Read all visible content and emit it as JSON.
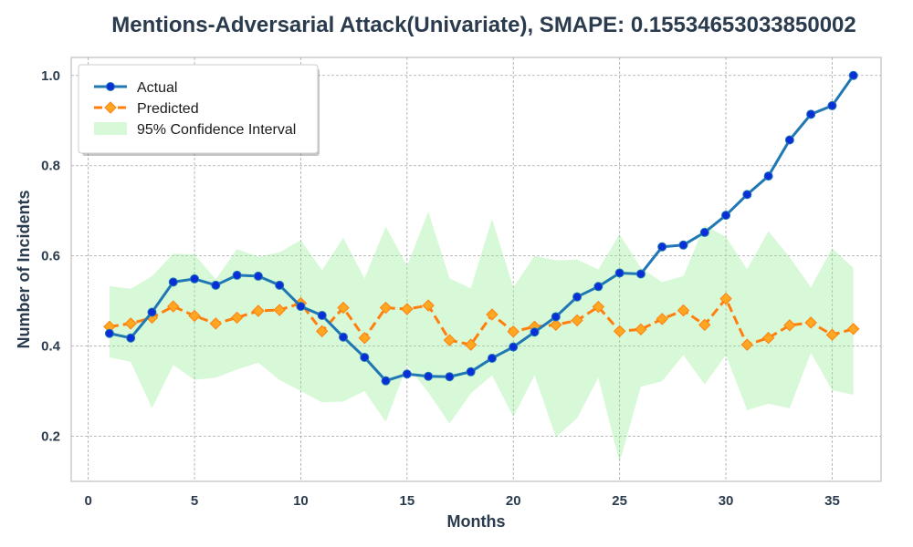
{
  "chart_data": {
    "type": "line",
    "title": "Mentions-Adversarial Attack(Univariate), SMAPE: 0.15534653033850002",
    "xlabel": "Months",
    "ylabel": "Number of Incidents",
    "xlim": [
      -0.8,
      37.3
    ],
    "ylim": [
      0.1,
      1.04
    ],
    "xticks": [
      0,
      5,
      10,
      15,
      20,
      25,
      30,
      35
    ],
    "yticks": [
      0.2,
      0.4,
      0.6,
      0.8,
      1.0
    ],
    "xtick_labels": [
      "0",
      "5",
      "10",
      "15",
      "20",
      "25",
      "30",
      "35"
    ],
    "ytick_labels": [
      "0.2",
      "0.4",
      "0.6",
      "0.8",
      "1.0"
    ],
    "grid": true,
    "legend_position": "top-left",
    "x": [
      1,
      2,
      3,
      4,
      5,
      6,
      7,
      8,
      9,
      10,
      11,
      12,
      13,
      14,
      15,
      16,
      17,
      18,
      19,
      20,
      21,
      22,
      23,
      24,
      25,
      26,
      27,
      28,
      29,
      30,
      31,
      32,
      33,
      34,
      35,
      36
    ],
    "series": [
      {
        "name": "Actual",
        "color": "#1f77b4",
        "marker_color": "#0a2fd6",
        "values": [
          0.428,
          0.418,
          0.475,
          0.542,
          0.549,
          0.535,
          0.557,
          0.555,
          0.535,
          0.488,
          0.468,
          0.42,
          0.375,
          0.323,
          0.338,
          0.333,
          0.332,
          0.343,
          0.373,
          0.398,
          0.431,
          0.465,
          0.509,
          0.532,
          0.562,
          0.56,
          0.62,
          0.624,
          0.652,
          0.69,
          0.736,
          0.777,
          0.857,
          0.914,
          0.933,
          1.0
        ]
      },
      {
        "name": "Predicted",
        "color": "#ff7f0e",
        "marker_color": "#ffa722",
        "values": [
          0.443,
          0.45,
          0.463,
          0.488,
          0.467,
          0.45,
          0.463,
          0.478,
          0.48,
          0.495,
          0.433,
          0.485,
          0.418,
          0.485,
          0.482,
          0.49,
          0.413,
          0.403,
          0.47,
          0.432,
          0.443,
          0.447,
          0.457,
          0.487,
          0.433,
          0.437,
          0.46,
          0.479,
          0.447,
          0.505,
          0.403,
          0.418,
          0.446,
          0.452,
          0.425,
          0.438
        ]
      }
    ],
    "confidence_interval": {
      "name": "95% Confidence Interval",
      "color": "#90ee90",
      "upper": [
        0.533,
        0.527,
        0.555,
        0.605,
        0.603,
        0.548,
        0.615,
        0.598,
        0.608,
        0.635,
        0.568,
        0.64,
        0.55,
        0.665,
        0.578,
        0.698,
        0.55,
        0.528,
        0.682,
        0.53,
        0.6,
        0.59,
        0.592,
        0.57,
        0.648,
        0.573,
        0.542,
        0.555,
        0.668,
        0.642,
        0.57,
        0.655,
        0.597,
        0.53,
        0.617,
        0.573
      ],
      "lower": [
        0.375,
        0.365,
        0.262,
        0.358,
        0.325,
        0.33,
        0.348,
        0.363,
        0.325,
        0.3,
        0.275,
        0.277,
        0.3,
        0.232,
        0.357,
        0.297,
        0.228,
        0.295,
        0.335,
        0.243,
        0.335,
        0.198,
        0.24,
        0.33,
        0.142,
        0.31,
        0.322,
        0.38,
        0.315,
        0.38,
        0.258,
        0.272,
        0.262,
        0.385,
        0.302,
        0.292
      ]
    }
  }
}
